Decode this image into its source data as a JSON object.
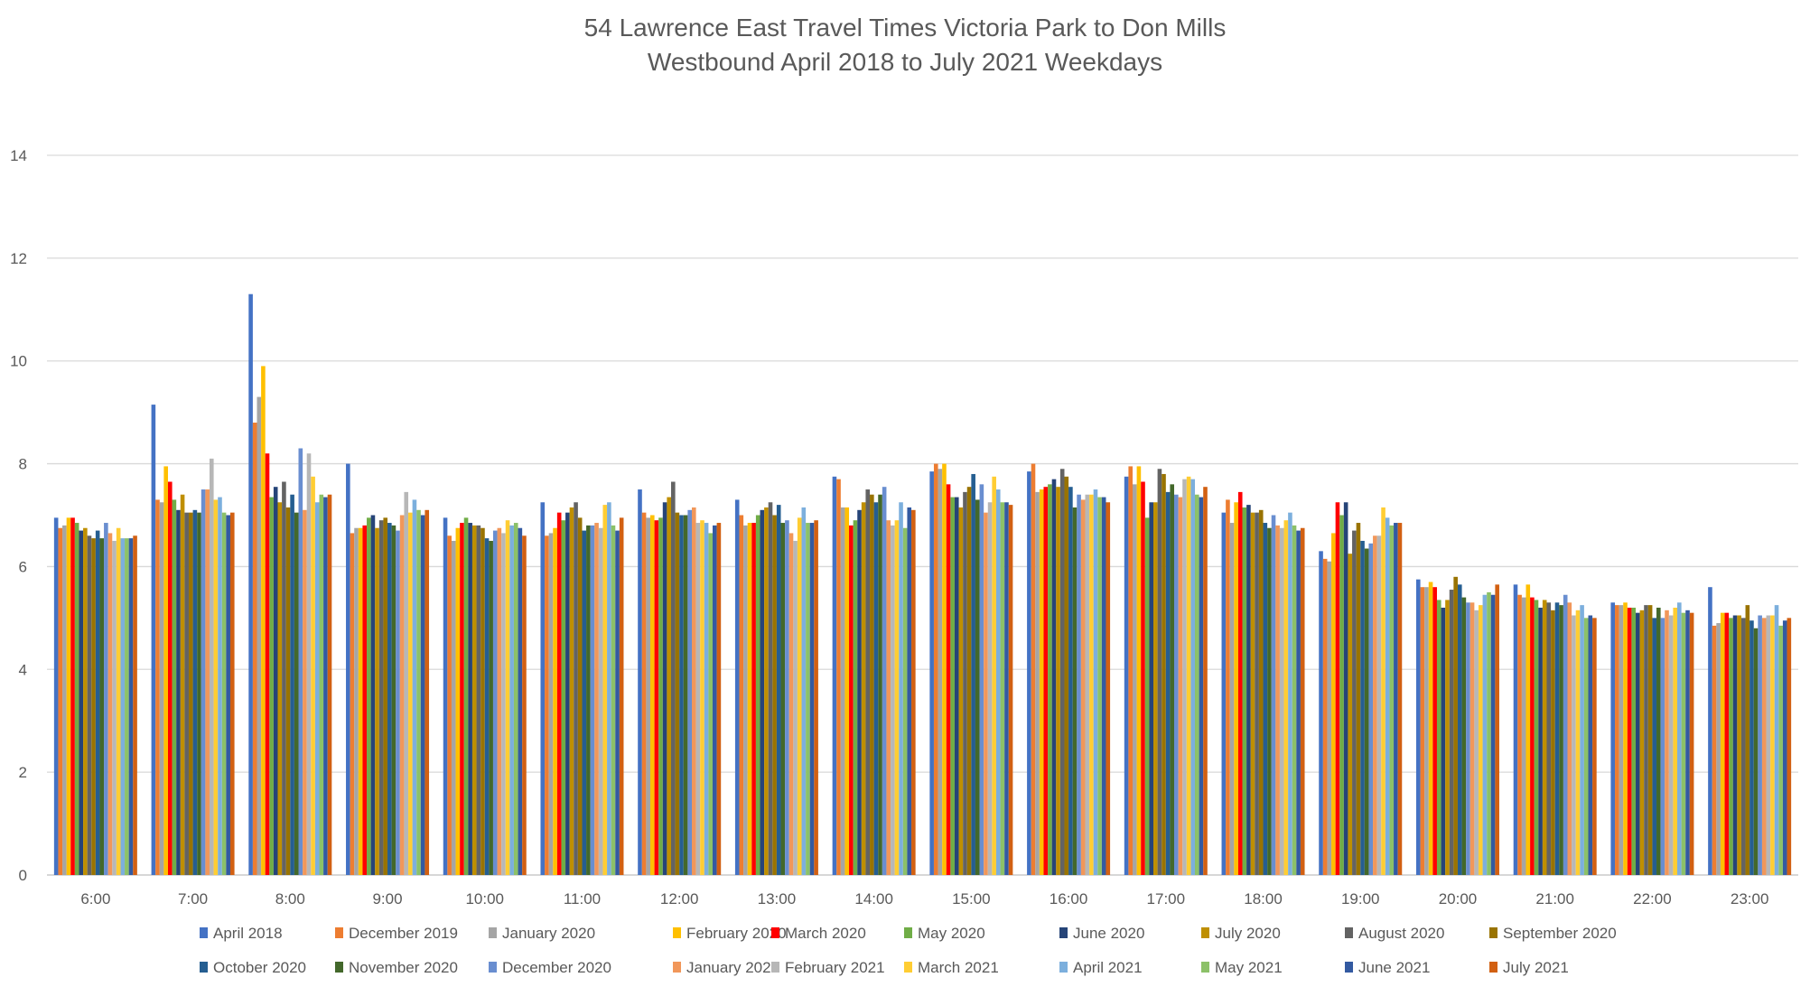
{
  "chart_data": {
    "type": "bar",
    "title": [
      "54 Lawrence East Travel Times Victoria Park to Don Mills",
      "Westbound April 2018 to July 2021 Weekdays"
    ],
    "xlabel": "",
    "ylabel": "",
    "ylim": [
      0,
      14
    ],
    "yticks": [
      0,
      2,
      4,
      6,
      8,
      10,
      12,
      14
    ],
    "grid": true,
    "legend_position": "bottom",
    "categories": [
      "6:00",
      "7:00",
      "8:00",
      "9:00",
      "10:00",
      "11:00",
      "12:00",
      "13:00",
      "14:00",
      "15:00",
      "16:00",
      "17:00",
      "18:00",
      "19:00",
      "20:00",
      "21:00",
      "22:00",
      "23:00"
    ],
    "series": [
      {
        "name": "April 2018",
        "color": "#4472C4",
        "values": [
          6.95,
          9.15,
          11.3,
          8.0,
          6.95,
          7.25,
          7.5,
          7.3,
          7.75,
          7.85,
          7.85,
          7.75,
          7.05,
          6.3,
          5.75,
          5.65,
          5.3,
          5.6
        ]
      },
      {
        "name": "December 2019",
        "color": "#ED7D31",
        "values": [
          6.75,
          7.3,
          8.8,
          6.65,
          6.6,
          6.6,
          7.05,
          7.0,
          7.7,
          8.0,
          8.0,
          7.95,
          7.3,
          6.15,
          5.6,
          5.45,
          5.25,
          4.85
        ]
      },
      {
        "name": "January 2020",
        "color": "#A5A5A5",
        "values": [
          6.8,
          7.25,
          9.3,
          6.75,
          6.5,
          6.65,
          6.95,
          6.8,
          7.15,
          7.9,
          7.45,
          7.6,
          6.85,
          6.1,
          5.6,
          5.4,
          5.25,
          4.9
        ]
      },
      {
        "name": "February 2020",
        "color": "#FFC000",
        "values": [
          6.95,
          7.95,
          9.9,
          6.75,
          6.75,
          6.75,
          7.0,
          6.85,
          7.15,
          8.0,
          7.5,
          7.95,
          7.25,
          6.65,
          5.7,
          5.65,
          5.3,
          5.1
        ]
      },
      {
        "name": "March 2020",
        "color": "#FF0000",
        "values": [
          6.95,
          7.65,
          8.2,
          6.8,
          6.85,
          7.05,
          6.9,
          6.85,
          6.8,
          7.6,
          7.55,
          7.65,
          7.45,
          7.25,
          5.6,
          5.4,
          5.2,
          5.1
        ]
      },
      {
        "name": "May 2020",
        "color": "#70AD47",
        "values": [
          6.85,
          7.3,
          7.35,
          6.95,
          6.95,
          6.9,
          6.95,
          7.0,
          6.9,
          7.35,
          7.6,
          6.95,
          7.15,
          7.0,
          5.35,
          5.35,
          5.2,
          5.0
        ]
      },
      {
        "name": "June 2020",
        "color": "#264478",
        "values": [
          6.7,
          7.1,
          7.55,
          7.0,
          6.85,
          7.05,
          7.25,
          7.1,
          7.1,
          7.35,
          7.7,
          7.25,
          7.2,
          7.25,
          5.2,
          5.2,
          5.1,
          5.05
        ]
      },
      {
        "name": "July 2020",
        "color": "#BF8F00",
        "values": [
          6.75,
          7.4,
          7.25,
          6.75,
          6.8,
          7.15,
          7.35,
          7.15,
          7.25,
          7.15,
          7.55,
          7.25,
          7.05,
          6.25,
          5.35,
          5.35,
          5.15,
          5.05
        ]
      },
      {
        "name": "August 2020",
        "color": "#636363",
        "values": [
          6.6,
          7.05,
          7.65,
          6.9,
          6.8,
          7.25,
          7.65,
          7.25,
          7.5,
          7.45,
          7.9,
          7.9,
          7.05,
          6.7,
          5.55,
          5.3,
          5.25,
          5.0
        ]
      },
      {
        "name": "September 2020",
        "color": "#997300",
        "values": [
          6.55,
          7.05,
          7.15,
          6.95,
          6.75,
          6.95,
          7.05,
          7.0,
          7.4,
          7.55,
          7.75,
          7.8,
          7.1,
          6.85,
          5.8,
          5.15,
          5.25,
          5.25
        ]
      },
      {
        "name": "October 2020",
        "color": "#255E91",
        "values": [
          6.7,
          7.1,
          7.4,
          6.85,
          6.55,
          6.7,
          7.0,
          7.2,
          7.25,
          7.8,
          7.55,
          7.45,
          6.85,
          6.5,
          5.65,
          5.3,
          5.0,
          4.95
        ]
      },
      {
        "name": "November 2020",
        "color": "#43682B",
        "values": [
          6.55,
          7.05,
          7.05,
          6.8,
          6.5,
          6.8,
          7.0,
          6.85,
          7.4,
          7.3,
          7.15,
          7.6,
          6.75,
          6.35,
          5.4,
          5.25,
          5.2,
          4.8
        ]
      },
      {
        "name": "December 2020",
        "color": "#698ED0",
        "values": [
          6.85,
          7.5,
          8.3,
          6.7,
          6.7,
          6.8,
          7.1,
          6.9,
          7.55,
          7.6,
          7.4,
          7.4,
          7.0,
          6.45,
          5.3,
          5.45,
          5.0,
          5.05
        ]
      },
      {
        "name": "January 2021",
        "color": "#F1975A",
        "values": [
          6.65,
          7.5,
          7.1,
          7.0,
          6.75,
          6.85,
          7.15,
          6.65,
          6.9,
          7.05,
          7.3,
          7.35,
          6.8,
          6.6,
          5.3,
          5.3,
          5.15,
          5.0
        ]
      },
      {
        "name": "February 2021",
        "color": "#B7B7B7",
        "values": [
          6.5,
          8.1,
          8.2,
          7.45,
          6.65,
          6.75,
          6.85,
          6.5,
          6.8,
          7.25,
          7.4,
          7.7,
          6.75,
          6.6,
          5.15,
          5.05,
          5.05,
          5.05
        ]
      },
      {
        "name": "March 2021",
        "color": "#FFCD33",
        "values": [
          6.75,
          7.3,
          7.75,
          7.05,
          6.9,
          7.2,
          6.9,
          6.95,
          6.9,
          7.75,
          7.4,
          7.75,
          6.9,
          7.15,
          5.25,
          5.15,
          5.2,
          5.05
        ]
      },
      {
        "name": "April 2021",
        "color": "#7CAFDD",
        "values": [
          6.55,
          7.35,
          7.25,
          7.3,
          6.8,
          7.25,
          6.85,
          7.15,
          7.25,
          7.5,
          7.5,
          7.7,
          7.05,
          6.95,
          5.45,
          5.25,
          5.3,
          5.25
        ]
      },
      {
        "name": "May 2021",
        "color": "#8CC168",
        "values": [
          6.55,
          7.05,
          7.4,
          7.1,
          6.85,
          6.8,
          6.65,
          6.85,
          6.75,
          7.25,
          7.35,
          7.4,
          6.8,
          6.8,
          5.5,
          5.0,
          5.1,
          4.85
        ]
      },
      {
        "name": "June 2021",
        "color": "#335AA1",
        "values": [
          6.55,
          7.0,
          7.35,
          7.0,
          6.75,
          6.7,
          6.8,
          6.85,
          7.15,
          7.25,
          7.35,
          7.35,
          6.7,
          6.85,
          5.45,
          5.05,
          5.15,
          4.95
        ]
      },
      {
        "name": "July 2021",
        "color": "#D26012",
        "values": [
          6.6,
          7.05,
          7.4,
          7.1,
          6.6,
          6.95,
          6.85,
          6.9,
          7.1,
          7.2,
          7.25,
          7.55,
          6.75,
          6.85,
          5.65,
          5.0,
          5.1,
          5.0
        ]
      }
    ]
  }
}
